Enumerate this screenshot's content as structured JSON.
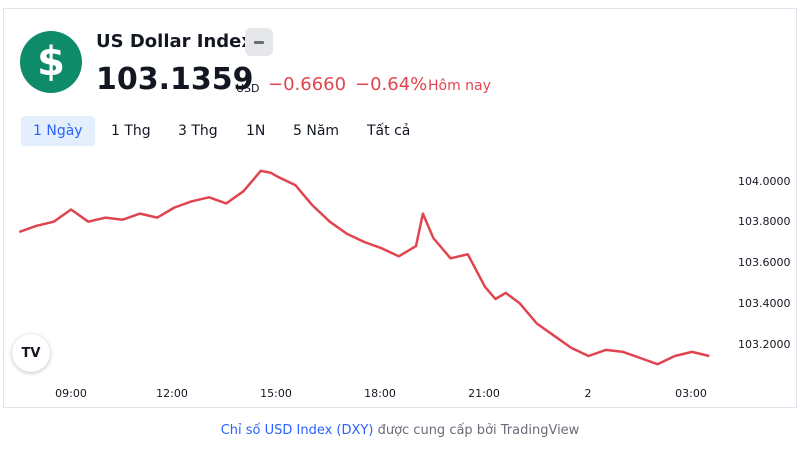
{
  "header": {
    "logo_symbol": "$",
    "title": "US Dollar Index",
    "price": "103.1359",
    "currency": "USD",
    "change": "−0.6660",
    "change_percent": "−0.64%",
    "period_label": "Hôm nay",
    "badge_icon": "minus-icon"
  },
  "tabs": [
    {
      "label": "1 Ngày",
      "active": true
    },
    {
      "label": "1 Thg",
      "active": false
    },
    {
      "label": "3 Thg",
      "active": false
    },
    {
      "label": "1N",
      "active": false
    },
    {
      "label": "5 Năm",
      "active": false
    },
    {
      "label": "Tất cả",
      "active": false
    }
  ],
  "footer": {
    "link_text": "Chỉ số USD Index (DXY)",
    "rest_text": "được cung cấp bởi TradingView"
  },
  "tv_logo_text": "TV",
  "colors": {
    "line": "#e0454f",
    "logo_bg": "#0e8c6a",
    "accent": "#2962ff"
  },
  "chart_data": {
    "type": "line",
    "x_ticks": [
      "09:00",
      "12:00",
      "15:00",
      "18:00",
      "21:00",
      "2",
      "03:00"
    ],
    "y_ticks": [
      "104.0000",
      "103.8000",
      "103.6000",
      "103.4000",
      "103.2000"
    ],
    "ylim": [
      103.08,
      104.08
    ],
    "grid": false,
    "series": [
      {
        "x": [
          7.5,
          8.0,
          8.5,
          9.0,
          9.5,
          10.0,
          10.5,
          11.0,
          11.5,
          12.0,
          12.5,
          13.0,
          13.5,
          14.0,
          14.5,
          14.8,
          15.0,
          15.5,
          16.0,
          16.5,
          17.0,
          17.5,
          18.0,
          18.5,
          19.0,
          19.2,
          19.5,
          20.0,
          20.5,
          21.0,
          21.3,
          21.6,
          22.0,
          22.5,
          23.0,
          23.5,
          24.0,
          24.5,
          25.0,
          25.5,
          26.0,
          26.5,
          27.0,
          27.5
        ],
        "values": [
          103.75,
          103.78,
          103.8,
          103.86,
          103.8,
          103.82,
          103.81,
          103.84,
          103.82,
          103.87,
          103.9,
          103.92,
          103.89,
          103.95,
          104.05,
          104.04,
          104.02,
          103.98,
          103.88,
          103.8,
          103.74,
          103.7,
          103.67,
          103.63,
          103.68,
          103.84,
          103.72,
          103.62,
          103.64,
          103.48,
          103.42,
          103.45,
          103.4,
          103.3,
          103.24,
          103.18,
          103.14,
          103.17,
          103.16,
          103.13,
          103.1,
          103.14,
          103.16,
          103.14
        ]
      }
    ]
  }
}
